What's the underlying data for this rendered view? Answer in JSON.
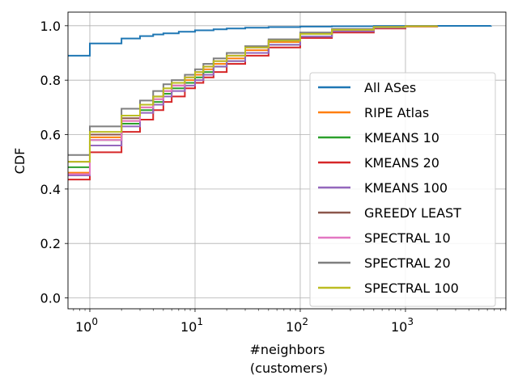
{
  "chart_data": {
    "type": "line",
    "step": true,
    "xscale": "log",
    "xlabel_lines": [
      "#neighbors",
      "(customers)"
    ],
    "ylabel": "CDF",
    "xlim": [
      0.62,
      9000
    ],
    "ylim": [
      -0.04,
      1.05
    ],
    "xticks": [
      {
        "value": 1,
        "base": "10",
        "exp": "0"
      },
      {
        "value": 10,
        "base": "10",
        "exp": "1"
      },
      {
        "value": 100,
        "base": "10",
        "exp": "2"
      },
      {
        "value": 1000,
        "base": "10",
        "exp": "3"
      }
    ],
    "yticks": [
      "0.0",
      "0.2",
      "0.4",
      "0.6",
      "0.8",
      "1.0"
    ],
    "grid": true,
    "legend_position": "lower-right",
    "series": [
      {
        "name": "All ASes",
        "color": "#1f77b4",
        "x": [
          0.62,
          1,
          2,
          3,
          4,
          5,
          7,
          10,
          15,
          20,
          30,
          50,
          100,
          200,
          500,
          1000,
          6500
        ],
        "y": [
          0.89,
          0.935,
          0.953,
          0.962,
          0.968,
          0.972,
          0.978,
          0.983,
          0.987,
          0.99,
          0.993,
          0.995,
          0.997,
          0.998,
          0.999,
          0.9995,
          1.0
        ]
      },
      {
        "name": "RIPE Atlas",
        "color": "#ff7f0e",
        "x": [
          0.62,
          1,
          2,
          3,
          4,
          5,
          6,
          8,
          10,
          12,
          15,
          20,
          30,
          50,
          100,
          200,
          500,
          1000,
          2000
        ],
        "y": [
          0.46,
          0.59,
          0.65,
          0.7,
          0.73,
          0.76,
          0.78,
          0.8,
          0.82,
          0.84,
          0.86,
          0.88,
          0.91,
          0.94,
          0.97,
          0.985,
          0.995,
          0.998,
          1.0
        ]
      },
      {
        "name": "KMEANS 10",
        "color": "#2ca02c",
        "x": [
          0.62,
          1,
          2,
          3,
          4,
          5,
          6,
          8,
          10,
          12,
          15,
          20,
          30,
          50,
          100,
          200,
          500,
          1000,
          2000
        ],
        "y": [
          0.48,
          0.58,
          0.64,
          0.69,
          0.72,
          0.75,
          0.77,
          0.79,
          0.81,
          0.83,
          0.85,
          0.87,
          0.9,
          0.93,
          0.96,
          0.98,
          0.993,
          0.998,
          1.0
        ]
      },
      {
        "name": "KMEANS 20",
        "color": "#d62728",
        "x": [
          0.62,
          1,
          2,
          3,
          4,
          5,
          6,
          8,
          10,
          12,
          15,
          20,
          30,
          50,
          100,
          200,
          500,
          1000,
          2000
        ],
        "y": [
          0.435,
          0.535,
          0.61,
          0.655,
          0.69,
          0.72,
          0.74,
          0.77,
          0.79,
          0.81,
          0.83,
          0.86,
          0.89,
          0.92,
          0.955,
          0.975,
          0.99,
          0.997,
          1.0
        ]
      },
      {
        "name": "KMEANS 100",
        "color": "#9467bd",
        "x": [
          0.62,
          1,
          2,
          3,
          4,
          5,
          6,
          8,
          10,
          12,
          15,
          20,
          30,
          50,
          100,
          200,
          500,
          1000,
          2000
        ],
        "y": [
          0.45,
          0.56,
          0.63,
          0.68,
          0.71,
          0.74,
          0.76,
          0.78,
          0.8,
          0.82,
          0.85,
          0.87,
          0.9,
          0.93,
          0.96,
          0.98,
          0.993,
          0.998,
          1.0
        ]
      },
      {
        "name": "GREEDY LEAST",
        "color": "#8c564b",
        "x": [
          0.62,
          1,
          2,
          3,
          4,
          5,
          6,
          8,
          10,
          12,
          15,
          20,
          30,
          50,
          100,
          200,
          500,
          1000,
          2000
        ],
        "y": [
          0.5,
          0.6,
          0.66,
          0.71,
          0.74,
          0.76,
          0.78,
          0.81,
          0.83,
          0.85,
          0.87,
          0.89,
          0.92,
          0.945,
          0.97,
          0.985,
          0.995,
          0.998,
          1.0
        ]
      },
      {
        "name": "SPECTRAL 10",
        "color": "#e377c2",
        "x": [
          0.62,
          1,
          2,
          3,
          4,
          5,
          6,
          8,
          10,
          12,
          15,
          20,
          30,
          50,
          100,
          200,
          500,
          1000,
          2000
        ],
        "y": [
          0.455,
          0.58,
          0.65,
          0.7,
          0.73,
          0.76,
          0.78,
          0.81,
          0.83,
          0.85,
          0.87,
          0.89,
          0.92,
          0.945,
          0.97,
          0.985,
          0.995,
          0.998,
          1.0
        ]
      },
      {
        "name": "SPECTRAL 20",
        "color": "#7f7f7f",
        "x": [
          0.62,
          1,
          2,
          3,
          4,
          5,
          6,
          8,
          10,
          12,
          15,
          20,
          30,
          50,
          100,
          200,
          500,
          1000,
          2000
        ],
        "y": [
          0.525,
          0.63,
          0.695,
          0.725,
          0.76,
          0.785,
          0.8,
          0.82,
          0.84,
          0.86,
          0.88,
          0.9,
          0.925,
          0.95,
          0.975,
          0.988,
          0.996,
          0.999,
          1.0
        ]
      },
      {
        "name": "SPECTRAL 100",
        "color": "#bcbd22",
        "x": [
          0.62,
          1,
          2,
          3,
          4,
          5,
          6,
          8,
          10,
          12,
          15,
          20,
          30,
          50,
          100,
          200,
          500,
          1000,
          2000
        ],
        "y": [
          0.5,
          0.61,
          0.67,
          0.71,
          0.74,
          0.77,
          0.79,
          0.81,
          0.83,
          0.85,
          0.87,
          0.89,
          0.92,
          0.945,
          0.97,
          0.985,
          0.995,
          0.998,
          1.0
        ]
      }
    ]
  }
}
